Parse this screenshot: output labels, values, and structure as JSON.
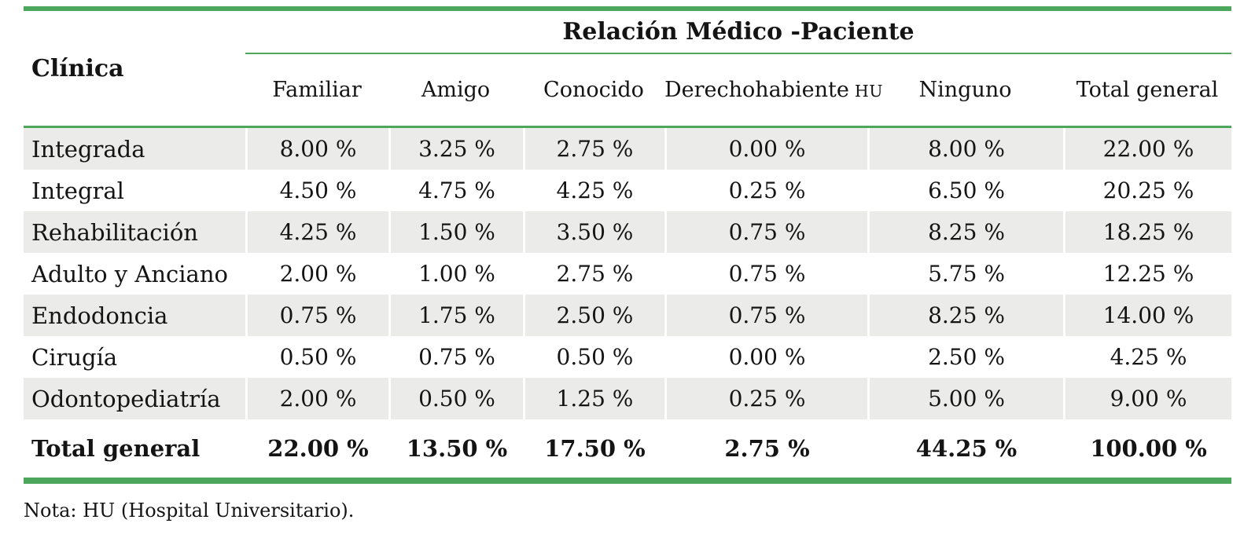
{
  "table": {
    "corner_header": "Clínica",
    "group_header": "Relación Médico -Paciente",
    "columns": [
      {
        "label": "Familiar"
      },
      {
        "label": "Amigo"
      },
      {
        "label": "Conocido"
      },
      {
        "label": "Derechohabiente",
        "suffix": "HU"
      },
      {
        "label": "Ninguno"
      },
      {
        "label": "Total general"
      }
    ],
    "rows": [
      {
        "label": "Integrada",
        "values": [
          "8.00 %",
          "3.25 %",
          "2.75 %",
          "0.00 %",
          "8.00 %",
          "22.00 %"
        ]
      },
      {
        "label": "Integral",
        "values": [
          "4.50 %",
          "4.75 %",
          "4.25 %",
          "0.25 %",
          "6.50 %",
          "20.25 %"
        ]
      },
      {
        "label": "Rehabilitación",
        "values": [
          "4.25 %",
          "1.50 %",
          "3.50 %",
          "0.75 %",
          "8.25 %",
          "18.25 %"
        ]
      },
      {
        "label": "Adulto y Anciano",
        "values": [
          "2.00 %",
          "1.00 %",
          "2.75 %",
          "0.75 %",
          "5.75 %",
          "12.25 %"
        ]
      },
      {
        "label": "Endodoncia",
        "values": [
          "0.75 %",
          "1.75 %",
          "2.50 %",
          "0.75 %",
          "8.25 %",
          "14.00 %"
        ]
      },
      {
        "label": "Cirugía",
        "values": [
          "0.50 %",
          "0.75 %",
          "0.50 %",
          "0.00 %",
          "2.50 %",
          "4.25 %"
        ]
      },
      {
        "label": "Odontopediatría",
        "values": [
          "2.00 %",
          "0.50 %",
          "1.25 %",
          "0.25 %",
          "5.00 %",
          "9.00 %"
        ]
      }
    ],
    "total_row": {
      "label": "Total general",
      "values": [
        "22.00 %",
        "13.50 %",
        "17.50 %",
        "2.75 %",
        "44.25 %",
        "100.00 %"
      ]
    }
  },
  "note": "Nota: HU (Hospital Universitario).",
  "colors": {
    "accent_green": "#4CA75C",
    "stripe": "#EBEBE9",
    "text": "#141414"
  }
}
